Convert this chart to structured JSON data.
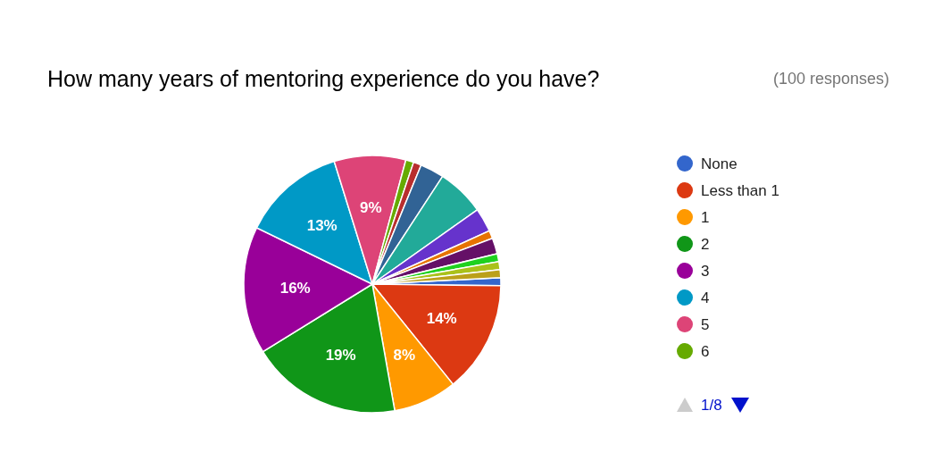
{
  "chart_data": {
    "type": "pie",
    "title": "How many years of mentoring experience do you have?",
    "subtitle": "(100 responses)",
    "categories": [
      "None",
      "Less than 1",
      "1",
      "2",
      "3",
      "4",
      "5",
      "6",
      null,
      null,
      null,
      null,
      null,
      null,
      null,
      null,
      null
    ],
    "values": [
      1,
      14,
      8,
      19,
      16,
      13,
      9,
      1,
      1,
      3,
      6,
      3,
      1,
      2,
      1,
      1,
      1
    ],
    "colors": [
      "#3366cc",
      "#dc3912",
      "#ff9900",
      "#109618",
      "#990099",
      "#0099c6",
      "#dd4477",
      "#66aa00",
      "#b82e2e",
      "#316395",
      "#22aa99",
      "#6633cc",
      "#e67300",
      "#651067",
      "#1fd11f",
      "#aac11a",
      "#bba01a"
    ],
    "value_labels": [
      null,
      "14%",
      "8%",
      "19%",
      "16%",
      "13%",
      "9%",
      null,
      null,
      null,
      null,
      null,
      null,
      null,
      null,
      null,
      null
    ],
    "legend": "right",
    "annotations": [
      "1/8"
    ]
  }
}
